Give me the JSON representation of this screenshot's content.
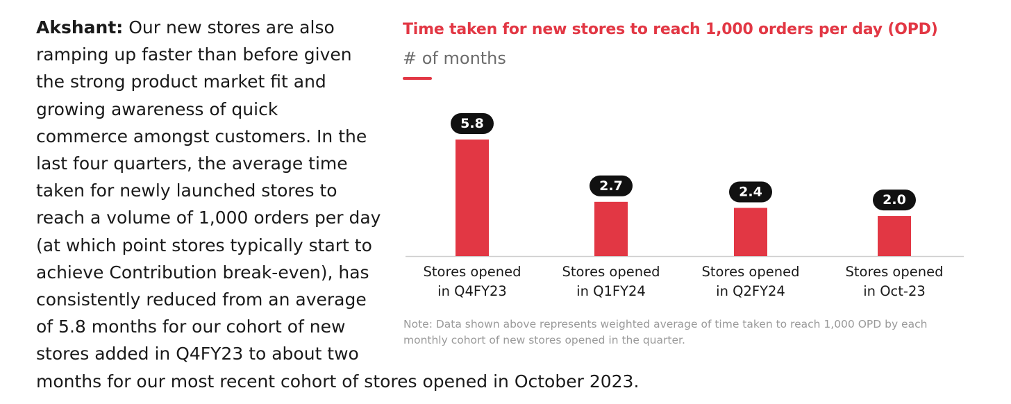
{
  "paragraph": {
    "speaker": "Akshant:",
    "lines": [
      " Our new stores are also",
      "ramping up faster than before given",
      "the strong product market fit and",
      "growing awareness of quick",
      "commerce amongst customers. In the",
      "last four quarters, the average time",
      "taken for newly launched stores to",
      "reach a volume of 1,000 orders per day",
      "(at which point stores typically start to",
      "achieve Contribution break-even), has",
      "consistently reduced from an average",
      "of 5.8 months for our cohort of new",
      "stores added in Q4FY23 to about two",
      "months for our most recent cohort of stores opened in October 2023."
    ]
  },
  "chart": {
    "title": "Time taken for new stores to reach 1,000 orders per day (OPD)",
    "subtitle": "# of months",
    "note": "Note: Data shown above represents weighted average of time taken to reach 1,000 OPD by each monthly cohort of new stores opened in the quarter."
  },
  "chart_data": {
    "type": "bar",
    "title": "Time taken for new stores to reach 1,000 orders per day (OPD)",
    "subtitle": "# of months",
    "categories": [
      [
        "Stores opened",
        "in Q4FY23"
      ],
      [
        "Stores opened",
        "in Q1FY24"
      ],
      [
        "Stores opened",
        "in Q2FY24"
      ],
      [
        "Stores opened",
        "in Oct-23"
      ]
    ],
    "values": [
      5.8,
      2.7,
      2.4,
      2.0
    ],
    "data_labels": [
      "5.8",
      "2.7",
      "2.4",
      "2.0"
    ],
    "ylim": [
      0,
      5.8
    ],
    "grid": false,
    "legend": "none",
    "bar_color": "#e23744",
    "label_badge_color": "#111111",
    "label_text_color": "#ffffff"
  }
}
